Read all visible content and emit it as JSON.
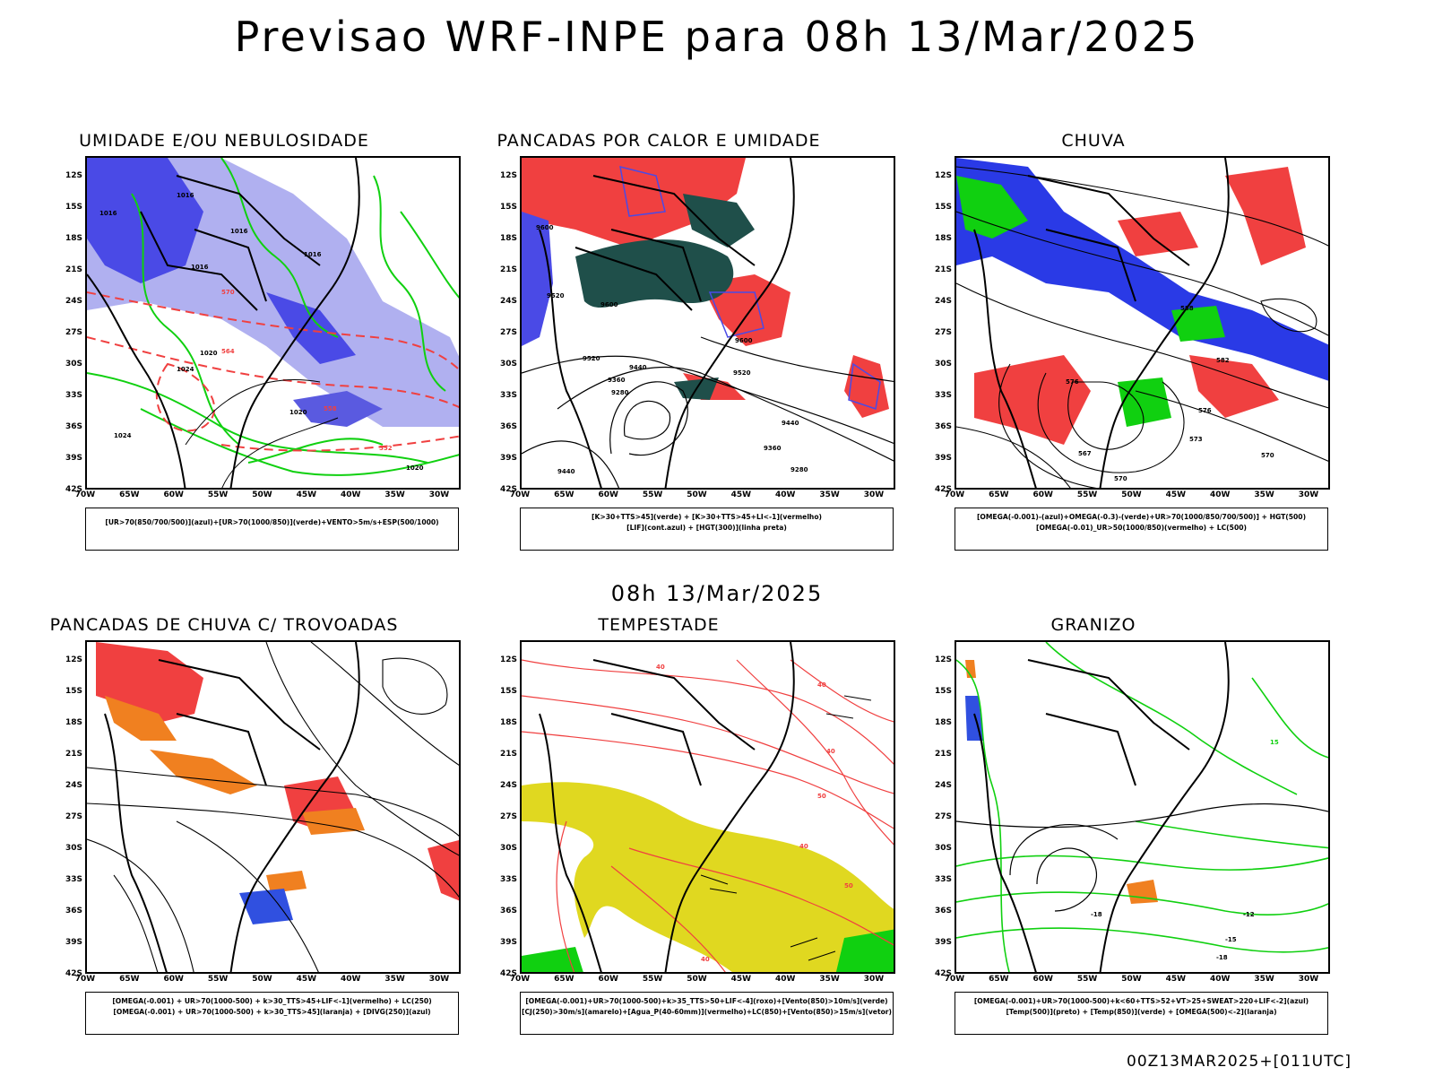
{
  "title": "Previsao WRF-INPE  para 08h 13/Mar/2025",
  "mid_time": "08h 13/Mar/2025",
  "footer": "00Z13MAR2025+[011UTC]",
  "axes": {
    "lat": [
      "12S",
      "15S",
      "18S",
      "21S",
      "24S",
      "27S",
      "30S",
      "33S",
      "36S",
      "39S",
      "42S"
    ],
    "lon": [
      "70W",
      "65W",
      "60W",
      "55W",
      "50W",
      "45W",
      "40W",
      "35W",
      "30W"
    ]
  },
  "colors": {
    "humidity_blue": "#4a4ae6",
    "humidity_light": "#b0b0f0",
    "green": "#10d010",
    "red": "#f04040",
    "dark_teal": "#1f4f4a",
    "orange": "#f08020",
    "yellow": "#e0d820",
    "contour_black": "#000000"
  },
  "panels": [
    {
      "title": "UMIDADE E/OU NEBULOSIDADE",
      "legend": [
        "[UR>70(850/700/500)](azul)+[UR>70(1000/850)](verde)+VENTO>5m/s+ESP(500/1000)"
      ],
      "labels": [
        "1016",
        "1016",
        "1016",
        "1016",
        "1016",
        "1020",
        "1020",
        "1024",
        "1024",
        "1020",
        "570",
        "564",
        "558",
        "552"
      ]
    },
    {
      "title": "PANCADAS POR CALOR E UMIDADE",
      "legend": [
        "[K>30+TTS>45](verde) + [K>30+TTS>45+LI<-1](vermelho)",
        "[LIF](cont.azul) + [HGT(300)](linha preta)"
      ],
      "labels": [
        "9600",
        "9520",
        "9600",
        "9520",
        "9440",
        "9360",
        "9280",
        "9600",
        "9520",
        "9440",
        "9360",
        "9280",
        "9440"
      ]
    },
    {
      "title": "CHUVA",
      "legend": [
        "[OMEGA(-0.001)-(azul)+OMEGA(-0.3)-(verde)+UR>70(1000/850/700/500)] + HGT(500)",
        "[OMEGA(-0.01)_UR>50(1000/850)(vermelho) + LC(500)"
      ],
      "labels": [
        "588",
        "582",
        "576",
        "570",
        "573",
        "567",
        "570",
        "576"
      ]
    },
    {
      "title": "PANCADAS DE CHUVA C/ TROVOADAS",
      "legend": [
        "[OMEGA(-0.001) + UR>70(1000-500) + k>30_TTS>45+LIF<-1](vermelho) + LC(250)",
        "[OMEGA(-0.001) + UR>70(1000-500) + k>30_TTS>45](laranja) + [DIVG(250)](azul)"
      ],
      "labels": []
    },
    {
      "title": "TEMPESTADE",
      "legend": [
        "[OMEGA(-0.001)+UR>70(1000-500)+k>35_TTS>50+LIF<-4](roxo)+[Vento(850)>10m/s](verde)",
        "[CJ(250)>30m/s](amarelo)+[Agua_P(40-60mm)](vermelho)+LC(850)+[Vento(850)>15m/s](vetor)"
      ],
      "labels": [
        "40",
        "40",
        "50",
        "40",
        "40",
        "50",
        "40"
      ]
    },
    {
      "title": "GRANIZO",
      "legend": [
        "[OMEGA(-0.001)+UR>70(1000-500)+k<60+TTS>52+VT>25+SWEAT>220+LIF<-2](azul)",
        "[Temp(500)](preto) + [Temp(850)](verde) + [OMEGA(500)<-2](laranja)"
      ],
      "labels": [
        "-12",
        "-15",
        "-18",
        "-18",
        "15"
      ]
    }
  ]
}
